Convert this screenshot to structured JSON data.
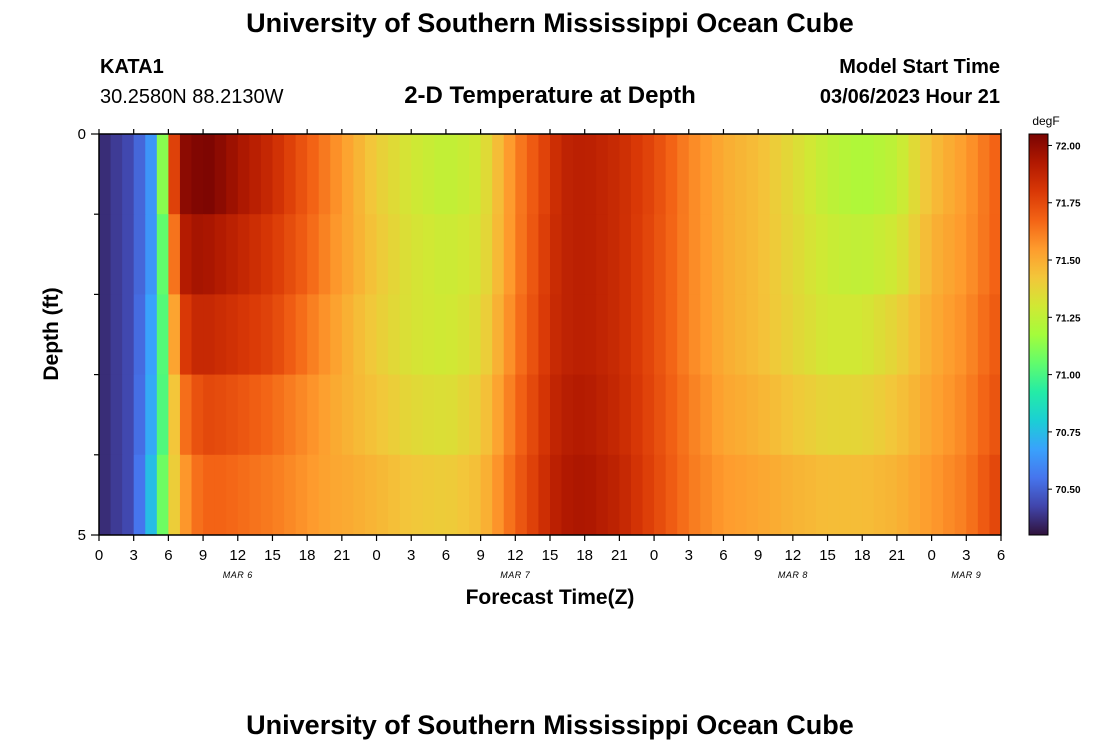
{
  "header": {
    "title": "University of Southern Mississippi Ocean Cube",
    "station_id": "KATA1",
    "station_coords": "30.2580N  88.2130W",
    "plot_title": "2-D Temperature at Depth",
    "model_start_label": "Model Start Time",
    "model_start_value": "03/06/2023 Hour 21"
  },
  "footer": {
    "title": "University of Southern Mississippi Ocean Cube"
  },
  "chart_data": {
    "type": "heatmap",
    "xlabel": "Forecast Time(Z)",
    "ylabel": "Depth (ft)",
    "x_ticks": [
      "0",
      "3",
      "6",
      "9",
      "12",
      "15",
      "18",
      "21",
      "0",
      "3",
      "6",
      "9",
      "12",
      "15",
      "18",
      "21",
      "0",
      "3",
      "6",
      "9",
      "12",
      "15",
      "18",
      "21",
      "0",
      "3",
      "6"
    ],
    "date_labels": [
      {
        "label": "MAR 6",
        "at_tick": 4
      },
      {
        "label": "MAR 7",
        "at_tick": 12
      },
      {
        "label": "MAR 8",
        "at_tick": 20
      },
      {
        "label": "MAR 9",
        "at_tick": 25
      }
    ],
    "y_tick_labels": [
      {
        "value": 0,
        "label": "0"
      },
      {
        "value": 5,
        "label": "5"
      }
    ],
    "y_minor_ticks": [
      1,
      2,
      3,
      4
    ],
    "ylim": [
      0,
      5
    ],
    "x_hours": [
      0,
      78
    ],
    "colorbar": {
      "unit": "degF",
      "range": [
        70.3,
        72.05
      ],
      "ticks": [
        "70.50",
        "70.75",
        "71.00",
        "71.25",
        "71.50",
        "71.75",
        "72.00"
      ],
      "tick_values": [
        70.5,
        70.75,
        71.0,
        71.25,
        71.5,
        71.75,
        72.0
      ],
      "colors": [
        "#30123b",
        "#4145ab",
        "#4675ed",
        "#39a2fc",
        "#1bcfd4",
        "#24eca6",
        "#61fc6c",
        "#a4fc3b",
        "#d1e834",
        "#f3c63a",
        "#fe9b2d",
        "#f36315",
        "#d93806",
        "#b11901",
        "#7a0402"
      ]
    },
    "depth_layers": [
      0,
      1,
      2,
      3,
      4
    ],
    "time_hours": [
      0,
      3,
      5,
      6,
      7,
      8,
      9,
      10,
      12,
      15,
      18,
      20,
      22,
      24,
      27,
      30,
      33,
      36,
      39,
      40,
      42,
      45,
      48,
      51,
      54,
      57,
      60,
      63,
      66,
      69,
      72,
      75,
      78
    ],
    "temperatures": [
      [
        70.35,
        70.45,
        70.7,
        71.55,
        72.0,
        72.02,
        72.05,
        72.03,
        71.95,
        71.85,
        71.7,
        71.6,
        71.5,
        71.4,
        71.3,
        71.25,
        71.3,
        71.6,
        71.8,
        71.88,
        71.9,
        71.85,
        71.75,
        71.6,
        71.5,
        71.45,
        71.35,
        71.25,
        71.2,
        71.25,
        71.45,
        71.55,
        71.7
      ],
      [
        70.35,
        70.45,
        70.7,
        71.4,
        71.88,
        71.95,
        71.95,
        71.93,
        71.88,
        71.8,
        71.68,
        71.58,
        71.5,
        71.42,
        71.32,
        71.28,
        71.32,
        71.6,
        71.82,
        71.88,
        71.9,
        71.85,
        71.74,
        71.6,
        71.5,
        71.45,
        71.36,
        71.28,
        71.25,
        71.3,
        71.48,
        71.56,
        71.7
      ],
      [
        70.35,
        70.45,
        70.75,
        71.3,
        71.75,
        71.85,
        71.87,
        71.85,
        71.82,
        71.76,
        71.63,
        71.55,
        71.47,
        71.4,
        71.32,
        71.29,
        71.35,
        71.62,
        71.83,
        71.88,
        71.9,
        71.85,
        71.74,
        71.6,
        71.5,
        71.45,
        71.37,
        71.3,
        71.3,
        71.38,
        71.5,
        71.58,
        71.72
      ],
      [
        70.35,
        70.45,
        70.78,
        71.25,
        71.6,
        71.7,
        71.75,
        71.75,
        71.72,
        71.66,
        71.58,
        71.52,
        71.47,
        71.43,
        71.36,
        71.33,
        71.4,
        71.65,
        71.85,
        71.9,
        71.92,
        71.86,
        71.75,
        71.62,
        71.52,
        71.48,
        71.42,
        71.37,
        71.37,
        71.43,
        71.52,
        71.6,
        71.74
      ],
      [
        70.35,
        70.45,
        70.85,
        71.3,
        71.5,
        71.62,
        71.67,
        71.68,
        71.66,
        71.62,
        71.56,
        71.52,
        71.5,
        71.47,
        71.42,
        71.4,
        71.45,
        71.68,
        71.87,
        71.92,
        71.94,
        71.88,
        71.76,
        71.63,
        71.55,
        71.52,
        71.48,
        71.45,
        71.45,
        71.48,
        71.55,
        71.62,
        71.78
      ]
    ]
  }
}
